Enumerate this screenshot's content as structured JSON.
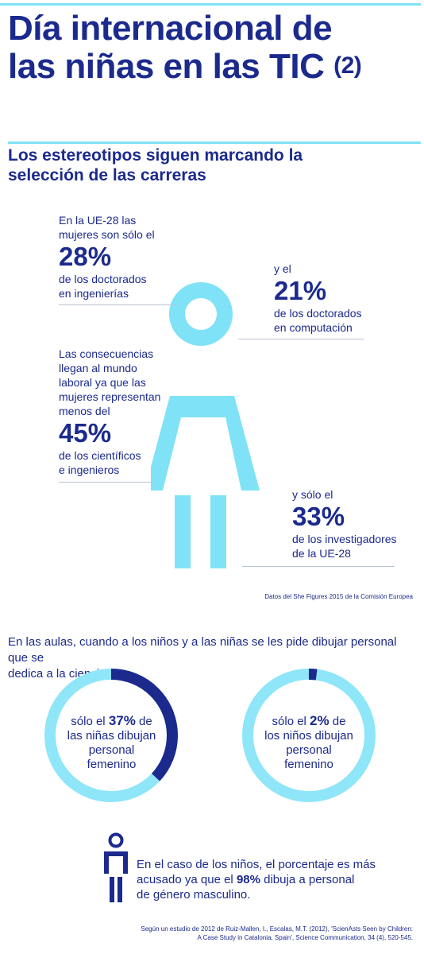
{
  "header": {
    "title_line1": "Día internacional de",
    "title_line2": "las niñas en las TIC",
    "title_suffix": "(2)",
    "subtitle_line1": "Los estereotipos siguen marcando la",
    "subtitle_line2": "selección de las carreras"
  },
  "stats": {
    "phd_eng": {
      "intro_line1": "En la UE-28 las",
      "intro_line2": "mujeres son sólo el",
      "value": "28%",
      "desc_line1": "de los doctorados",
      "desc_line2": "en ingenierías"
    },
    "phd_comp": {
      "intro_line1": "y el",
      "value": "21%",
      "desc_line1": "de los doctorados",
      "desc_line2": "en computación"
    },
    "workforce": {
      "intro_line1": "Las consecuencias",
      "intro_line2": "llegan al mundo",
      "intro_line3": "laboral ya que las",
      "intro_line4": "mujeres representan",
      "intro_line5": "menos del",
      "value": "45%",
      "desc_line1": "de los científicos",
      "desc_line2": "e ingenieros"
    },
    "researchers": {
      "intro_line1": "y sólo el",
      "value": "33%",
      "desc_line1": "de los investigadores",
      "desc_line2": "de la UE-28"
    }
  },
  "source1": "Datos del She Figures 2015 de la Comisión Europea",
  "classroom": {
    "intro_line1": "En las aulas, cuando a los niños y a las niñas se les pide dibujar personal que se",
    "intro_line2": "dedica a la ciencia:",
    "girls": {
      "fraction": 0.37,
      "pre": "sólo el ",
      "value": "37%",
      "post": " de",
      "line2": "las niñas dibujan",
      "line3": "personal",
      "line4": "femenino"
    },
    "boys": {
      "fraction": 0.02,
      "pre": "sólo el ",
      "value": "2%",
      "post": " de",
      "line2": "los niños dibujan",
      "line3": "personal",
      "line4": "femenino"
    }
  },
  "boys_note": {
    "line1": "En el caso de los niños, el porcentaje es más",
    "line2_pre": "acusado ya que el ",
    "line2_value": "98%",
    "line2_post": " dibuja a personal",
    "line3": "de género masculino."
  },
  "source2": {
    "line1": "Según un estudio de 2012 de Ruiz-Mallen, I., Escalas, M.T. (2012), 'ScienAsts Seen by Children:",
    "line2": "A Case Study in Catalonia, Spain', Science Communication, 34 (4), 520-545."
  },
  "colors": {
    "navy": "#1b2a8c",
    "cyan": "#7fe2f7",
    "light_cyan": "#8ee6f8"
  }
}
